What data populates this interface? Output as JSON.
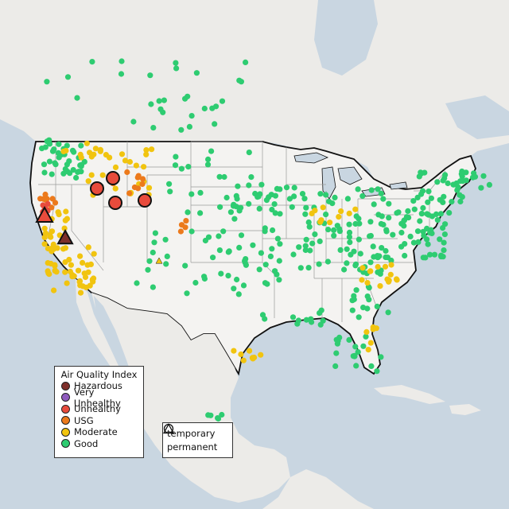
{
  "legend": {
    "title": "Air Quality Index",
    "categories": [
      {
        "label": "Hazardous",
        "color": "#7e2f2a"
      },
      {
        "label": "Very Unhealthy",
        "color": "#8e5bbd"
      },
      {
        "label": "Unhealthy",
        "color": "#e84b3c"
      },
      {
        "label": "USG",
        "color": "#ec7a1c"
      },
      {
        "label": "Moderate",
        "color": "#f1c40f"
      },
      {
        "label": "Good",
        "color": "#2ecc71"
      }
    ]
  },
  "monitor_types": {
    "temporary": "temporary",
    "permanent": "permanent"
  },
  "map_style": {
    "water": "#c9d6e1",
    "land": "#ecebe8",
    "us_land": "#f4f3f1",
    "border": "#111111",
    "state_lines": "#9a9a9a"
  }
}
